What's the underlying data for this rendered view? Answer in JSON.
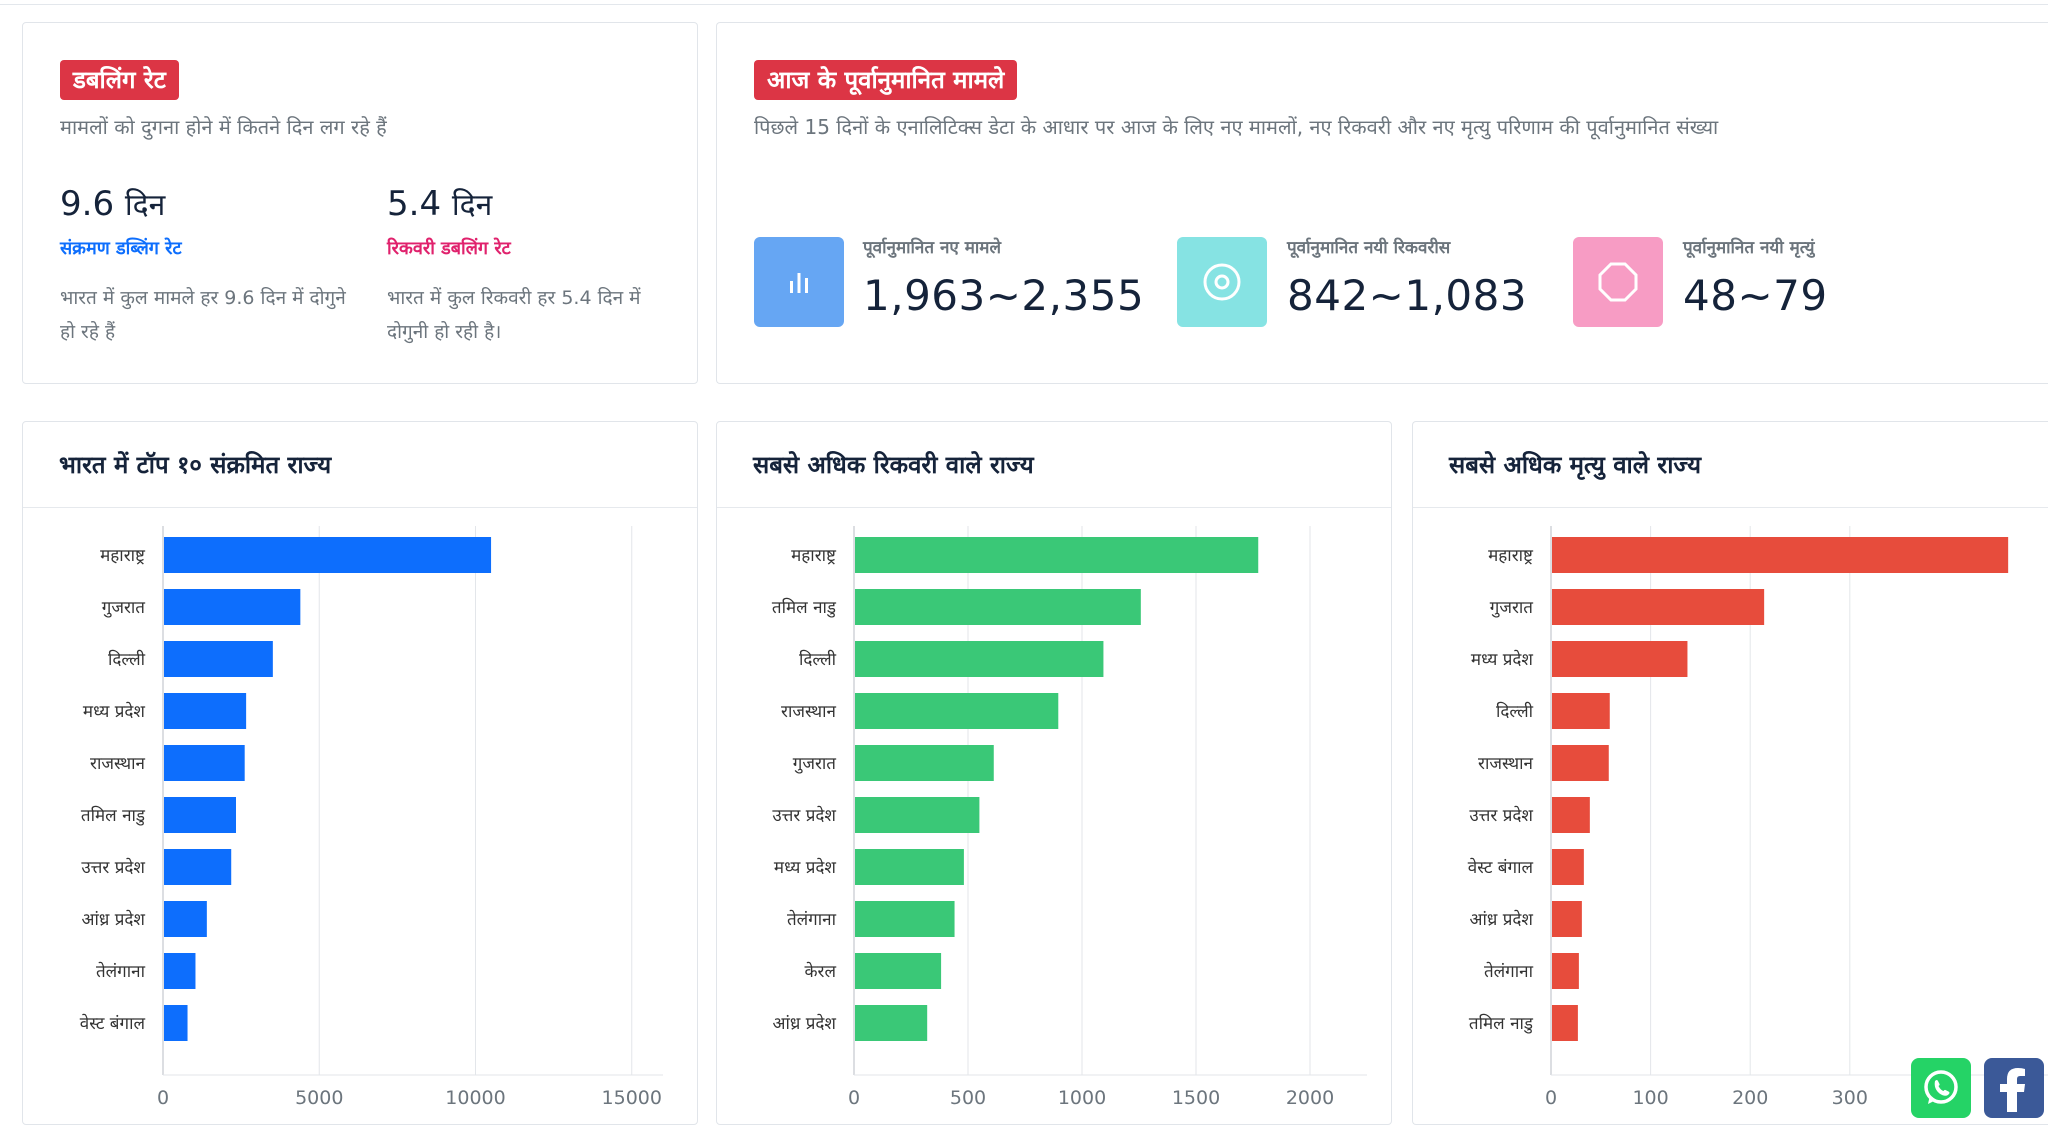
{
  "doubling": {
    "badge": "डबलिंग रेट",
    "subtitle": "मामलों को दुगना होने में कितने दिन लग रहे हैं",
    "infection": {
      "value": "9.6",
      "unit": "दिन",
      "label": "संक्रमण डब्लिंग रेट",
      "desc": "भारत में कुल मामले हर 9.6 दिन में दोगुने हो रहे हैं"
    },
    "recovery": {
      "value": "5.4",
      "unit": "दिन",
      "label": "रिकवरी डबलिंग रेट",
      "desc": "भारत में कुल रिकवरी हर 5.4 दिन में दोगुनी हो रही है।"
    }
  },
  "forecast": {
    "badge": "आज के पूर्वानुमानित मामले",
    "subtitle": "पिछले 15 दिनों के एनालिटिक्स डेटा के आधार पर आज के लिए नए मामलों, नए रिकवरी और नए मृत्यु परिणाम की पूर्वानुमानित संख्या",
    "items": [
      {
        "label": "पूर्वानुमानित नए मामले",
        "value": "1,963~2,355",
        "icon": "bar-chart-icon",
        "color": "#66a6f3"
      },
      {
        "label": "पूर्वानुमानित नयी रिकवरीस",
        "value": "842~1,083",
        "icon": "target-icon",
        "color": "#86e3e3"
      },
      {
        "label": "पूर्वानुमानित नयी मृत्युं",
        "value": "48~79",
        "icon": "octagon-icon",
        "color": "#f79cc4"
      }
    ]
  },
  "charts": {
    "infected": {
      "title": "भारत में टॉप १० संक्रमित राज्य"
    },
    "recovered": {
      "title": "सबसे अधिक रिकवरी वाले राज्य"
    },
    "deaths": {
      "title": "सबसे अधिक मृत्यु वाले राज्य"
    }
  },
  "chart_data": [
    {
      "type": "bar",
      "title": "भारत में टॉप १० संक्रमित राज्य",
      "orientation": "horizontal",
      "color": "#0d6efd",
      "categories": [
        "महाराष्ट्र",
        "गुजरात",
        "दिल्ली",
        "मध्य प्रदेश",
        "राजस्थान",
        "तमिल नाडु",
        "उत्तर प्रदेश",
        "आंध्र प्रदेश",
        "तेलंगाना",
        "वेस्ट बंगाल"
      ],
      "values": [
        10498,
        4395,
        3515,
        2660,
        2614,
        2336,
        2183,
        1403,
        1039,
        785
      ],
      "xlim": [
        0,
        16000
      ],
      "ticks": [
        0,
        5000,
        10000,
        15000
      ]
    },
    {
      "type": "bar",
      "title": "सबसे अधिक रिकवरी वाले राज्य",
      "orientation": "horizontal",
      "color": "#3ac877",
      "categories": [
        "महाराष्ट्र",
        "तमिल नाडु",
        "दिल्ली",
        "राजस्थान",
        "गुजरात",
        "उत्तर प्रदेश",
        "मध्य प्रदेश",
        "तेलंगाना",
        "केरल",
        "आंध्र प्रदेश"
      ],
      "values": [
        1773,
        1258,
        1094,
        896,
        613,
        550,
        482,
        441,
        382,
        321
      ],
      "xlim": [
        0,
        2250
      ],
      "ticks": [
        0,
        500,
        1000,
        1500,
        2000
      ]
    },
    {
      "type": "bar",
      "title": "सबसे अधिक मृत्यु वाले राज्य",
      "orientation": "horizontal",
      "color": "#e74c3c",
      "categories": [
        "महाराष्ट्र",
        "गुजरात",
        "मध्य प्रदेश",
        "दिल्ली",
        "राजस्थान",
        "उत्तर प्रदेश",
        "वेस्ट बंगाल",
        "आंध्र प्रदेश",
        "तेलंगाना",
        "तमिल नाडु"
      ],
      "values": [
        459,
        214,
        137,
        59,
        58,
        39,
        33,
        31,
        28,
        27
      ],
      "xlim": [
        0,
        500
      ],
      "ticks": [
        0,
        100,
        200,
        300
      ]
    }
  ],
  "share": {
    "whatsapp": "whatsapp-icon",
    "facebook": "facebook-icon"
  }
}
